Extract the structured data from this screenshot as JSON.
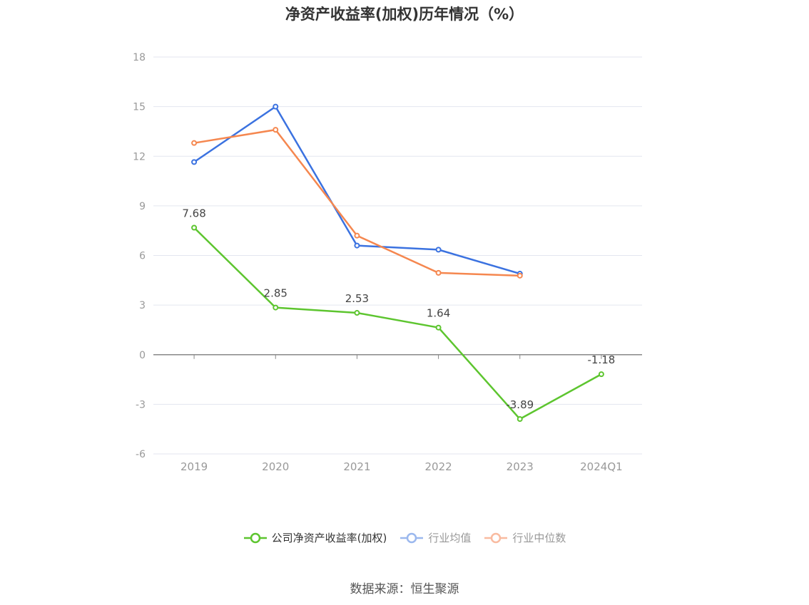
{
  "chart_data": {
    "type": "line",
    "title": "净资产收益率(加权)历年情况（%）",
    "categories": [
      "2019",
      "2020",
      "2021",
      "2022",
      "2023",
      "2024Q1"
    ],
    "ylim": [
      -6,
      18
    ],
    "yticks": [
      -6,
      -3,
      0,
      3,
      6,
      9,
      12,
      15,
      18
    ],
    "grid": true,
    "legend_position": "bottom",
    "series": [
      {
        "name": "公司净资产收益率(加权)",
        "color": "#5dc52f",
        "values": [
          7.68,
          2.85,
          2.53,
          1.64,
          -3.89,
          -1.18
        ],
        "labels": [
          "7.68",
          "2.85",
          "2.53",
          "1.64",
          "-3.89",
          "-1.18"
        ],
        "active": true
      },
      {
        "name": "行业均值",
        "color": "#3b72e0",
        "legend_color": "#9bb8ee",
        "values": [
          11.65,
          15.0,
          6.6,
          6.35,
          4.9,
          null
        ],
        "active": false
      },
      {
        "name": "行业中位数",
        "color": "#f5874f",
        "legend_color": "#f9bba0",
        "values": [
          12.8,
          13.6,
          7.2,
          4.95,
          4.78,
          null
        ],
        "active": false
      }
    ]
  },
  "source": "数据来源：恒生聚源"
}
